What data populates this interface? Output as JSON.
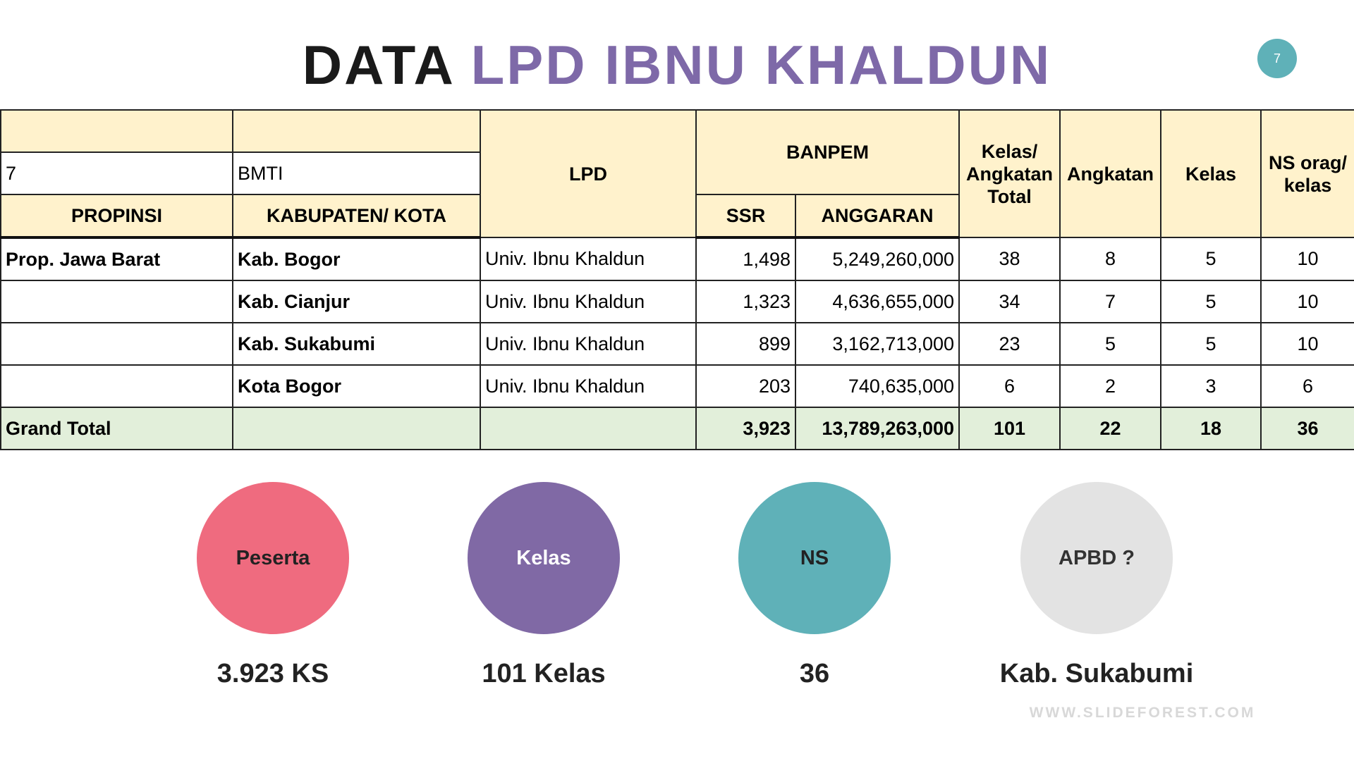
{
  "header": {
    "title_dark": "DATA",
    "title_accent": "LPD IBNU KHALDUN",
    "page_number": "7"
  },
  "table": {
    "header_cells": {
      "code": "7",
      "org": "BMTI",
      "propinsi": "PROPINSI",
      "kabupaten": "KABUPATEN/ KOTA",
      "lpd": "LPD",
      "banpem": "BANPEM",
      "ssr": "SSR",
      "anggaran": "ANGGARAN",
      "kelas_angkatan_total": "Kelas/ Angkatan Total",
      "angkatan": "Angkatan",
      "kelas": "Kelas",
      "ns": "NS orag/ kelas"
    },
    "rows": [
      [
        "Prop. Jawa Barat",
        "Kab. Bogor",
        "Univ. Ibnu Khaldun",
        "1,498",
        "5,249,260,000",
        "38",
        "8",
        "5",
        "10"
      ],
      [
        null,
        "Kab. Cianjur",
        "Univ. Ibnu Khaldun",
        "1,323",
        "4,636,655,000",
        "34",
        "7",
        "5",
        "10"
      ],
      [
        null,
        "Kab. Sukabumi",
        "Univ. Ibnu Khaldun",
        "899",
        "3,162,713,000",
        "23",
        "5",
        "5",
        "10"
      ],
      [
        null,
        "Kota Bogor",
        "Univ. Ibnu Khaldun",
        "203",
        "740,635,000",
        "6",
        "2",
        "3",
        "6"
      ]
    ],
    "total": [
      "Grand Total",
      null,
      null,
      "3,923",
      "13,789,263,000",
      "101",
      "22",
      "18",
      "36"
    ]
  },
  "summary": [
    {
      "label": "Peserta",
      "caption": "3.923 KS"
    },
    {
      "label": "Kelas",
      "caption": "101 Kelas"
    },
    {
      "label": "NS",
      "caption": "36"
    },
    {
      "label": "APBD ?",
      "caption": "Kab. Sukabumi"
    }
  ],
  "watermark": "WWW.SLIDEFOREST.COM"
}
